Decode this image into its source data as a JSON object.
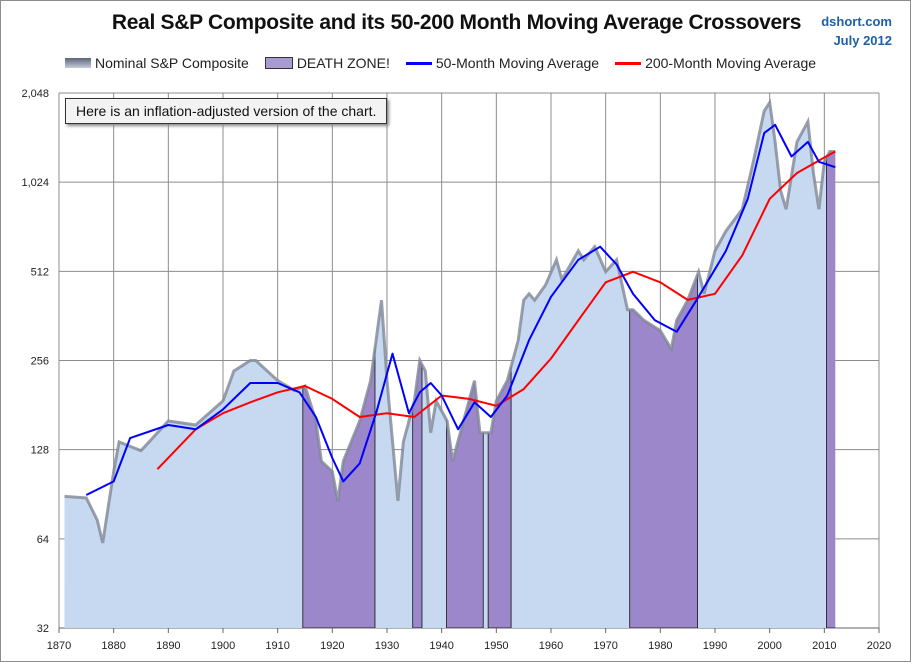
{
  "header": {
    "title": "Real S&P Composite and its 50-200 Month Moving Average Crossovers",
    "source": "dshort.com",
    "date": "July 2012"
  },
  "annotation": "Here is an inflation-adjusted version of the chart.",
  "chart_data": {
    "type": "area",
    "title": "Real S&P Composite and its 50-200 Month Moving Average Crossovers",
    "y_scale": "log2",
    "ylim": [
      32,
      2048
    ],
    "xlim": [
      1870,
      2020
    ],
    "y_ticks": [
      "32",
      "64",
      "128",
      "256",
      "512",
      "1,024",
      "2,048"
    ],
    "x_ticks": [
      "1870",
      "1880",
      "1890",
      "1900",
      "1910",
      "1920",
      "1930",
      "1940",
      "1950",
      "1960",
      "1970",
      "1980",
      "1990",
      "2000",
      "2010",
      "2020"
    ],
    "grid": "vertical",
    "legend_position": "top",
    "colors": {
      "area": "#c6d9f0",
      "area_edge": "#7f8797",
      "death_zone": "#9b87c9",
      "ma50": "#0000ff",
      "ma200": "#ff0000"
    },
    "legend": [
      {
        "label": "Nominal S&P Composite",
        "kind": "area"
      },
      {
        "label": "DEATH ZONE!",
        "kind": "zone"
      },
      {
        "label": "50-Month Moving Average",
        "kind": "ma50"
      },
      {
        "label": "200-Month Moving Average",
        "kind": "ma200"
      }
    ],
    "price": [
      [
        1871,
        89
      ],
      [
        1875,
        88
      ],
      [
        1877,
        74
      ],
      [
        1878,
        62
      ],
      [
        1880,
        108
      ],
      [
        1881,
        136
      ],
      [
        1885,
        127
      ],
      [
        1890,
        160
      ],
      [
        1895,
        155
      ],
      [
        1900,
        187
      ],
      [
        1902,
        236
      ],
      [
        1905,
        256
      ],
      [
        1906,
        256
      ],
      [
        1910,
        219
      ],
      [
        1913,
        203
      ],
      [
        1915,
        210
      ],
      [
        1917,
        160
      ],
      [
        1918,
        117
      ],
      [
        1920,
        108
      ],
      [
        1921,
        86
      ],
      [
        1922,
        117
      ],
      [
        1925,
        160
      ],
      [
        1927,
        219
      ],
      [
        1929,
        409
      ],
      [
        1930,
        219
      ],
      [
        1932,
        86
      ],
      [
        1933,
        136
      ],
      [
        1935,
        187
      ],
      [
        1936,
        256
      ],
      [
        1937,
        236
      ],
      [
        1938,
        146
      ],
      [
        1939,
        187
      ],
      [
        1941,
        160
      ],
      [
        1942,
        117
      ],
      [
        1944,
        160
      ],
      [
        1946,
        219
      ],
      [
        1947,
        146
      ],
      [
        1949,
        146
      ],
      [
        1950,
        187
      ],
      [
        1952,
        219
      ],
      [
        1954,
        299
      ],
      [
        1955,
        409
      ],
      [
        1956,
        430
      ],
      [
        1957,
        409
      ],
      [
        1959,
        460
      ],
      [
        1961,
        560
      ],
      [
        1962,
        480
      ],
      [
        1965,
        600
      ],
      [
        1966,
        560
      ],
      [
        1968,
        620
      ],
      [
        1970,
        510
      ],
      [
        1972,
        560
      ],
      [
        1974,
        380
      ],
      [
        1975,
        380
      ],
      [
        1977,
        350
      ],
      [
        1980,
        323
      ],
      [
        1982,
        280
      ],
      [
        1983,
        350
      ],
      [
        1985,
        409
      ],
      [
        1987,
        510
      ],
      [
        1988,
        430
      ],
      [
        1990,
        600
      ],
      [
        1992,
        700
      ],
      [
        1995,
        830
      ],
      [
        1997,
        1200
      ],
      [
        1999,
        1780
      ],
      [
        2000,
        1900
      ],
      [
        2001,
        1400
      ],
      [
        2002,
        960
      ],
      [
        2003,
        830
      ],
      [
        2005,
        1400
      ],
      [
        2007,
        1640
      ],
      [
        2008,
        1100
      ],
      [
        2009,
        830
      ],
      [
        2010,
        1200
      ],
      [
        2011,
        1300
      ],
      [
        2012,
        1300
      ]
    ],
    "ma50": [
      [
        1875,
        90
      ],
      [
        1880,
        100
      ],
      [
        1883,
        140
      ],
      [
        1890,
        155
      ],
      [
        1895,
        150
      ],
      [
        1900,
        175
      ],
      [
        1905,
        215
      ],
      [
        1910,
        215
      ],
      [
        1914,
        200
      ],
      [
        1917,
        165
      ],
      [
        1920,
        120
      ],
      [
        1922,
        100
      ],
      [
        1925,
        115
      ],
      [
        1928,
        170
      ],
      [
        1931,
        270
      ],
      [
        1934,
        170
      ],
      [
        1936,
        200
      ],
      [
        1938,
        215
      ],
      [
        1940,
        195
      ],
      [
        1943,
        150
      ],
      [
        1946,
        185
      ],
      [
        1949,
        165
      ],
      [
        1952,
        195
      ],
      [
        1956,
        300
      ],
      [
        1960,
        420
      ],
      [
        1965,
        560
      ],
      [
        1969,
        620
      ],
      [
        1972,
        540
      ],
      [
        1975,
        430
      ],
      [
        1979,
        350
      ],
      [
        1983,
        320
      ],
      [
        1987,
        420
      ],
      [
        1992,
        600
      ],
      [
        1996,
        900
      ],
      [
        1999,
        1500
      ],
      [
        2001,
        1600
      ],
      [
        2004,
        1250
      ],
      [
        2007,
        1400
      ],
      [
        2009,
        1200
      ],
      [
        2012,
        1150
      ]
    ],
    "ma200": [
      [
        1888,
        110
      ],
      [
        1895,
        150
      ],
      [
        1900,
        170
      ],
      [
        1905,
        185
      ],
      [
        1910,
        200
      ],
      [
        1915,
        210
      ],
      [
        1920,
        190
      ],
      [
        1925,
        165
      ],
      [
        1930,
        170
      ],
      [
        1935,
        165
      ],
      [
        1940,
        195
      ],
      [
        1945,
        190
      ],
      [
        1950,
        180
      ],
      [
        1955,
        205
      ],
      [
        1960,
        260
      ],
      [
        1965,
        350
      ],
      [
        1970,
        470
      ],
      [
        1975,
        510
      ],
      [
        1980,
        470
      ],
      [
        1985,
        410
      ],
      [
        1990,
        430
      ],
      [
        1995,
        580
      ],
      [
        2000,
        900
      ],
      [
        2005,
        1100
      ],
      [
        2010,
        1240
      ],
      [
        2012,
        1300
      ]
    ],
    "death_zones": [
      [
        1914.6,
        1927.8
      ],
      [
        1934.7,
        1936.4
      ],
      [
        1940.9,
        1947.6
      ],
      [
        1948.5,
        1952.7
      ],
      [
        1974.4,
        1986.8
      ],
      [
        2010.4,
        2012.5
      ]
    ]
  }
}
